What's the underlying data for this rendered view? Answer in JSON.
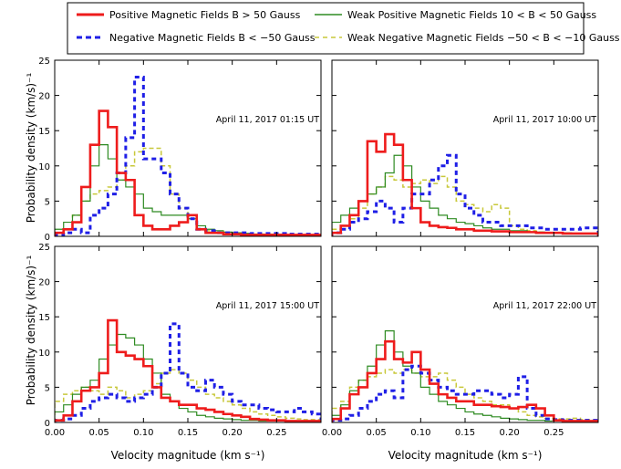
{
  "legend": {
    "entries": [
      {
        "label": "Positive Magnetic Fields B > 50 Gauss",
        "series": "pos"
      },
      {
        "label": "Negative Magnetic Fields B < −50 Gauss",
        "series": "neg"
      },
      {
        "label": "Weak Positive Magnetic Fields 10 < B < 50 Gauss",
        "series": "wpos"
      },
      {
        "label": "Weak Negative Magnetic Fields −50 < B < −10 Gauss",
        "series": "wneg"
      }
    ]
  },
  "colors": {
    "pos": "#ee1c1c",
    "neg": "#1f1fe6",
    "wpos": "#2e8b22",
    "wneg": "#c8c83a"
  },
  "chart_data": {
    "type": "histogram-step",
    "xlabel": "Velocity magnitude (km s⁻¹)",
    "ylabel": "Probability density (km/s)⁻¹",
    "xlim": [
      0,
      0.3
    ],
    "ylim": [
      0,
      25
    ],
    "bin_width": 0.01,
    "bin_start": 0.0,
    "xticks": [
      "0.00",
      "0.05",
      "0.10",
      "0.15",
      "0.20",
      "0.25"
    ],
    "yticks": [
      "0",
      "5",
      "10",
      "15",
      "20",
      "25"
    ],
    "panels": [
      {
        "annotation": "April 11, 2017 01:15 UT",
        "series": {
          "pos": [
            0.5,
            1.0,
            2.0,
            7.0,
            13.0,
            17.8,
            15.5,
            9.0,
            8.0,
            3.0,
            1.5,
            1.0,
            1.0,
            1.5,
            2.0,
            3.0,
            1.0,
            0.5,
            0.5,
            0.3,
            0.3,
            0.2,
            0.2,
            0.2,
            0.2,
            0.2,
            0.2,
            0.2,
            0.2,
            0.2
          ],
          "neg": [
            0.2,
            0.5,
            1.0,
            0.5,
            3.0,
            4.0,
            6.0,
            9.0,
            14.0,
            22.6,
            11.0,
            11.0,
            9.0,
            6.0,
            4.0,
            2.5,
            1.0,
            0.8,
            0.5,
            0.5,
            0.5,
            0.5,
            0.4,
            0.4,
            0.4,
            0.4,
            0.3,
            0.3,
            0.3,
            0.3
          ],
          "wpos": [
            1.0,
            2.0,
            3.0,
            5.0,
            10.0,
            13.0,
            11.0,
            8.0,
            7.0,
            6.0,
            4.0,
            3.5,
            3.0,
            3.0,
            3.0,
            2.5,
            1.5,
            1.0,
            0.8,
            0.6,
            0.5,
            0.4,
            0.3,
            0.3,
            0.3,
            0.3,
            0.2,
            0.2,
            0.2,
            0.2
          ],
          "wneg": [
            0.5,
            1.0,
            3.0,
            5.0,
            6.0,
            6.5,
            7.0,
            8.0,
            10.0,
            12.0,
            12.5,
            12.5,
            10.0,
            6.0,
            4.0,
            2.5,
            1.0,
            0.8,
            0.6,
            0.5,
            0.4,
            0.4,
            0.3,
            0.3,
            0.3,
            0.3,
            0.2,
            0.2,
            0.2,
            0.2
          ]
        }
      },
      {
        "annotation": "April 11, 2017 10:00 UT",
        "series": {
          "pos": [
            0.5,
            1.5,
            3.0,
            5.0,
            13.5,
            12.0,
            14.5,
            13.0,
            8.0,
            4.0,
            2.0,
            1.5,
            1.3,
            1.2,
            1.0,
            1.0,
            0.8,
            0.8,
            0.7,
            0.7,
            0.6,
            0.6,
            0.6,
            0.5,
            0.5,
            0.5,
            0.4,
            0.4,
            0.4,
            0.4
          ],
          "neg": [
            0.5,
            1.0,
            2.0,
            2.5,
            3.5,
            5.0,
            4.0,
            2.0,
            4.0,
            6.0,
            6.0,
            8.0,
            10.0,
            11.5,
            6.0,
            4.0,
            3.0,
            2.0,
            2.0,
            1.5,
            1.5,
            1.5,
            1.2,
            1.2,
            1.0,
            1.0,
            1.0,
            1.0,
            1.2,
            1.2
          ],
          "wpos": [
            2.0,
            3.0,
            4.0,
            5.0,
            6.0,
            7.0,
            9.0,
            11.5,
            10.0,
            7.0,
            5.0,
            4.0,
            3.0,
            2.5,
            2.0,
            1.8,
            1.5,
            1.2,
            1.0,
            1.0,
            0.8,
            0.8,
            0.6,
            0.6,
            0.5,
            0.5,
            0.5,
            0.4,
            0.4,
            0.4
          ],
          "wneg": [
            1.0,
            1.5,
            2.5,
            4.0,
            6.0,
            7.0,
            8.5,
            8.0,
            7.0,
            7.5,
            8.0,
            7.5,
            8.5,
            7.0,
            5.0,
            4.5,
            4.0,
            3.5,
            4.5,
            4.0,
            1.5,
            1.0,
            0.8,
            0.6,
            0.5,
            0.5,
            0.4,
            0.4,
            0.4,
            0.4
          ]
        }
      },
      {
        "annotation": "April 11, 2017 15:00 UT",
        "series": {
          "pos": [
            0.3,
            1.0,
            3.0,
            4.5,
            5.0,
            7.0,
            14.5,
            10.0,
            9.5,
            9.0,
            8.0,
            5.0,
            3.5,
            3.0,
            2.5,
            2.5,
            2.0,
            1.8,
            1.5,
            1.2,
            1.0,
            0.8,
            0.5,
            0.4,
            0.3,
            0.3,
            0.2,
            0.2,
            0.2,
            0.2
          ],
          "neg": [
            0.3,
            0.5,
            1.0,
            2.0,
            3.0,
            3.5,
            4.0,
            3.5,
            3.0,
            3.5,
            4.0,
            5.0,
            7.0,
            14.0,
            7.0,
            5.0,
            4.5,
            6.0,
            5.0,
            4.0,
            3.0,
            2.5,
            2.5,
            2.0,
            1.8,
            1.5,
            1.5,
            2.0,
            1.5,
            1.2
          ],
          "wpos": [
            1.5,
            2.5,
            4.0,
            5.0,
            6.0,
            9.0,
            11.0,
            12.5,
            12.0,
            11.0,
            9.0,
            7.0,
            4.0,
            3.0,
            2.0,
            1.5,
            1.0,
            0.8,
            0.6,
            0.5,
            0.4,
            0.3,
            0.3,
            0.2,
            0.2,
            0.2,
            0.2,
            0.2,
            0.2,
            0.2
          ],
          "wneg": [
            3.0,
            4.0,
            4.5,
            5.0,
            4.5,
            4.0,
            5.0,
            4.5,
            3.5,
            4.0,
            4.5,
            5.5,
            7.0,
            7.5,
            7.0,
            6.0,
            5.0,
            4.0,
            3.5,
            3.0,
            2.5,
            2.0,
            1.5,
            1.2,
            1.0,
            0.8,
            0.6,
            0.5,
            0.4,
            0.4
          ]
        }
      },
      {
        "annotation": "April 11, 2017 22:00 UT",
        "series": {
          "pos": [
            0.5,
            2.0,
            4.0,
            5.0,
            7.0,
            9.0,
            11.5,
            9.0,
            8.5,
            10.0,
            7.5,
            5.5,
            4.0,
            3.5,
            3.0,
            3.0,
            2.5,
            2.5,
            2.3,
            2.2,
            2.0,
            2.2,
            2.5,
            2.0,
            1.0,
            0.3,
            0.2,
            0.2,
            0.2,
            0.2
          ],
          "neg": [
            0.3,
            0.5,
            1.0,
            2.0,
            3.0,
            4.0,
            4.5,
            3.5,
            7.5,
            8.0,
            7.0,
            6.0,
            5.0,
            4.5,
            4.0,
            4.0,
            4.5,
            4.5,
            4.0,
            3.5,
            4.0,
            6.5,
            2.0,
            1.0,
            0.5,
            0.4,
            0.3,
            0.3,
            0.3,
            0.3
          ],
          "wpos": [
            1.0,
            2.5,
            4.5,
            6.0,
            8.0,
            11.0,
            13.0,
            10.0,
            8.0,
            7.0,
            5.0,
            4.0,
            3.0,
            2.5,
            2.0,
            1.5,
            1.2,
            1.0,
            0.8,
            0.6,
            0.5,
            0.4,
            0.3,
            0.3,
            0.2,
            0.2,
            0.2,
            0.2,
            0.2,
            0.2
          ],
          "wneg": [
            2.0,
            3.0,
            5.0,
            6.0,
            6.5,
            7.0,
            7.5,
            7.0,
            7.5,
            7.0,
            6.5,
            6.5,
            7.0,
            6.0,
            5.0,
            4.0,
            3.5,
            3.0,
            2.5,
            2.5,
            2.0,
            1.5,
            1.0,
            0.8,
            0.6,
            0.5,
            0.5,
            0.6,
            0.4,
            0.3
          ]
        }
      }
    ]
  }
}
